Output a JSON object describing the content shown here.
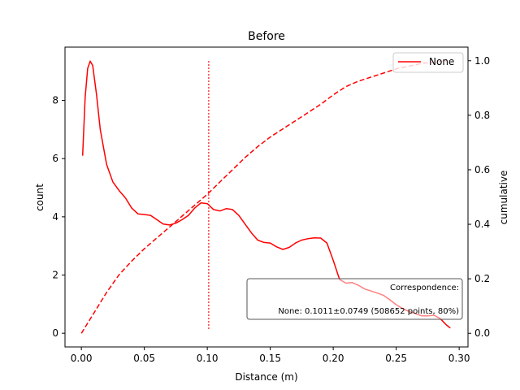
{
  "chart_data": {
    "type": "line",
    "title": "Before",
    "xlabel": "Distance (m)",
    "ylabel": "count",
    "y2label": "cumulative",
    "xlim": [
      -0.013,
      0.307
    ],
    "ylim": [
      -0.47,
      9.83
    ],
    "y2lim": [
      -0.05,
      1.05
    ],
    "xticks": [
      "0.00",
      "0.05",
      "0.10",
      "0.15",
      "0.20",
      "0.25",
      "0.30"
    ],
    "yticks": [
      "0",
      "2",
      "4",
      "6",
      "8"
    ],
    "y2ticks": [
      "0.0",
      "0.2",
      "0.4",
      "0.6",
      "0.8",
      "1.0"
    ],
    "grid": false,
    "legend": {
      "position": "top-right",
      "entries": [
        "None"
      ]
    },
    "color": "#ff0000",
    "series": [
      {
        "name": "None",
        "kind": "density",
        "axis": "left",
        "style": "solid",
        "x": [
          0.001,
          0.003,
          0.005,
          0.007,
          0.009,
          0.012,
          0.015,
          0.02,
          0.025,
          0.03,
          0.035,
          0.04,
          0.045,
          0.05,
          0.055,
          0.06,
          0.065,
          0.07,
          0.075,
          0.08,
          0.085,
          0.09,
          0.095,
          0.1,
          0.105,
          0.11,
          0.115,
          0.12,
          0.125,
          0.13,
          0.135,
          0.14,
          0.145,
          0.15,
          0.155,
          0.16,
          0.165,
          0.17,
          0.175,
          0.18,
          0.185,
          0.19,
          0.195,
          0.2,
          0.205,
          0.21,
          0.215,
          0.22,
          0.225,
          0.23,
          0.235,
          0.24,
          0.245,
          0.25,
          0.255,
          0.26,
          0.265,
          0.27,
          0.275,
          0.28,
          0.285,
          0.29,
          0.293
        ],
        "y": [
          6.1,
          8.1,
          9.1,
          9.35,
          9.2,
          8.2,
          7.0,
          5.8,
          5.2,
          4.9,
          4.65,
          4.3,
          4.1,
          4.08,
          4.05,
          3.9,
          3.75,
          3.72,
          3.78,
          3.9,
          4.05,
          4.3,
          4.48,
          4.45,
          4.25,
          4.2,
          4.28,
          4.25,
          4.05,
          3.75,
          3.45,
          3.2,
          3.12,
          3.1,
          2.97,
          2.88,
          2.95,
          3.1,
          3.2,
          3.25,
          3.28,
          3.27,
          3.1,
          2.5,
          1.85,
          1.72,
          1.74,
          1.65,
          1.52,
          1.45,
          1.38,
          1.3,
          1.15,
          0.98,
          0.85,
          0.75,
          0.68,
          0.6,
          0.6,
          0.62,
          0.5,
          0.28,
          0.18
        ]
      },
      {
        "name": "cumulative",
        "kind": "cumulative",
        "axis": "right",
        "style": "dashed",
        "x": [
          0.0,
          0.01,
          0.02,
          0.03,
          0.04,
          0.05,
          0.06,
          0.07,
          0.08,
          0.09,
          0.1,
          0.11,
          0.12,
          0.13,
          0.14,
          0.15,
          0.16,
          0.17,
          0.18,
          0.19,
          0.2,
          0.21,
          0.22,
          0.23,
          0.24,
          0.25,
          0.26,
          0.27,
          0.28,
          0.29
        ],
        "y": [
          0.0,
          0.075,
          0.15,
          0.215,
          0.265,
          0.31,
          0.35,
          0.39,
          0.43,
          0.47,
          0.51,
          0.555,
          0.6,
          0.645,
          0.685,
          0.72,
          0.75,
          0.78,
          0.81,
          0.84,
          0.875,
          0.905,
          0.925,
          0.94,
          0.955,
          0.97,
          0.98,
          0.99,
          0.995,
          1.0
        ]
      }
    ],
    "vline": {
      "x": 0.1011,
      "style": "dotted",
      "y_from": 0.15,
      "y_to": 9.35
    },
    "annotation": {
      "title": "Correspondence:",
      "text": "None: 0.1011±0.0749 (508652 points, 80%)"
    }
  }
}
